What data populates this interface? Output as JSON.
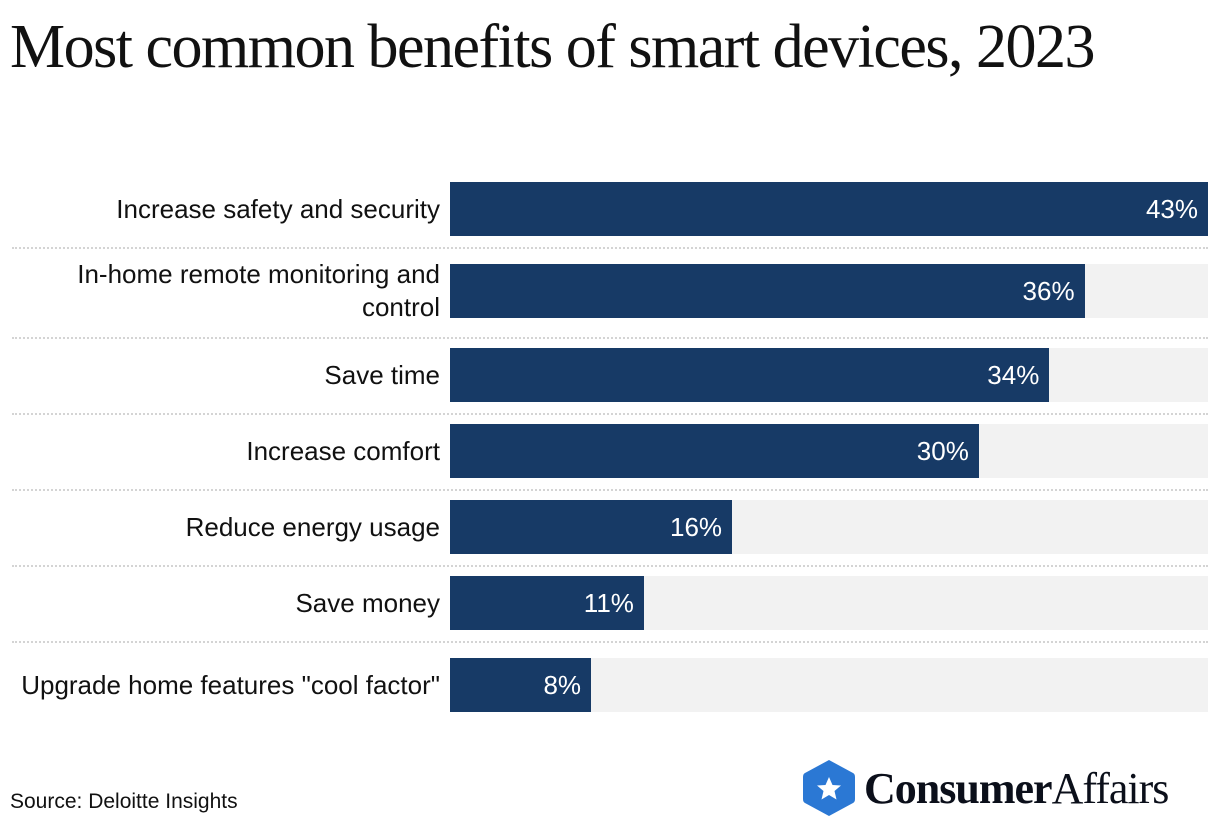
{
  "title": "Most common benefits of smart devices, 2023",
  "chart_data": {
    "type": "bar",
    "orientation": "horizontal",
    "categories": [
      "Increase safety and security",
      "In-home remote monitoring and control",
      "Save time",
      "Increase comfort",
      "Reduce energy usage",
      "Save money",
      "Upgrade home features \"cool factor\""
    ],
    "values": [
      43,
      36,
      34,
      30,
      16,
      11,
      8
    ],
    "data_labels": [
      "43%",
      "36%",
      "34%",
      "30%",
      "16%",
      "11%",
      "8%"
    ],
    "xlim": [
      0,
      43
    ],
    "unit": "%",
    "bar_color": "#173a66",
    "track_color": "#f2f2f2",
    "grid": false
  },
  "source": "Source: Deloitte Insights",
  "logo": {
    "text_bold": "Consumer",
    "text_regular": "Affairs",
    "icon": "star-hexagon-icon",
    "color": "#2b78d4"
  }
}
